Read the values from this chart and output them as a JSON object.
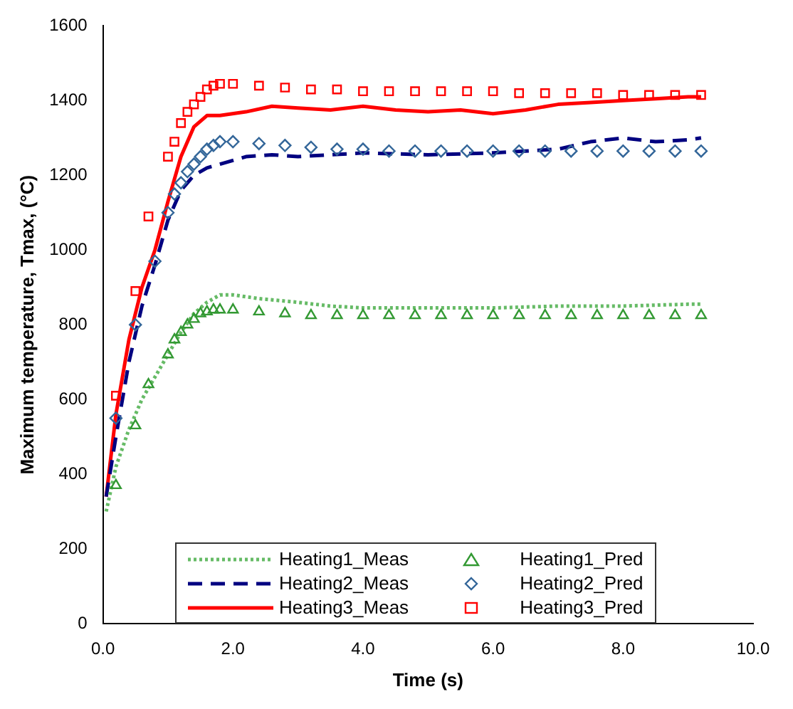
{
  "chart_data": {
    "type": "line",
    "xlabel": "Time (s)",
    "ylabel": "Maximum temperature, Tmax, (°C)",
    "xlim": [
      0,
      10
    ],
    "xticks": [
      {
        "value": 0,
        "label": "0.0"
      },
      {
        "value": 2,
        "label": "2.0"
      },
      {
        "value": 4,
        "label": "4.0"
      },
      {
        "value": 6,
        "label": "6.0"
      },
      {
        "value": 8,
        "label": "8.0"
      },
      {
        "value": 10,
        "label": "10.0"
      }
    ],
    "ylim": [
      0,
      1600
    ],
    "yticks": [
      0,
      200,
      400,
      600,
      800,
      1000,
      1200,
      1400,
      1600
    ],
    "grid": false,
    "legend": "bottom",
    "series": [
      {
        "name": "Heating1_Meas",
        "type": "line",
        "color": "#66bb66",
        "line_style": "dotted",
        "marker": "none",
        "x": [
          0.05,
          0.2,
          0.4,
          0.6,
          0.8,
          1.0,
          1.2,
          1.4,
          1.6,
          1.8,
          2.0,
          2.4,
          3,
          3.5,
          4,
          5,
          6,
          7,
          8,
          9,
          9.2
        ],
        "values": [
          300,
          420,
          520,
          600,
          660,
          720,
          780,
          830,
          860,
          880,
          880,
          870,
          860,
          850,
          845,
          845,
          845,
          850,
          850,
          855,
          855
        ]
      },
      {
        "name": "Heating2_Meas",
        "type": "line",
        "color": "#000080",
        "line_style": "dashed",
        "marker": "none",
        "x": [
          0.05,
          0.2,
          0.4,
          0.6,
          0.8,
          1.0,
          1.2,
          1.4,
          1.6,
          1.8,
          2.2,
          2.6,
          3,
          4,
          5,
          6,
          7,
          7.5,
          8,
          8.5,
          9,
          9.2
        ],
        "values": [
          340,
          500,
          700,
          850,
          960,
          1080,
          1160,
          1200,
          1220,
          1230,
          1250,
          1255,
          1250,
          1260,
          1255,
          1260,
          1270,
          1290,
          1300,
          1290,
          1295,
          1300
        ]
      },
      {
        "name": "Heating3_Meas",
        "type": "line",
        "color": "#ff0000",
        "line_style": "solid",
        "marker": "none",
        "x": [
          0.05,
          0.2,
          0.4,
          0.6,
          0.8,
          1.0,
          1.2,
          1.4,
          1.6,
          1.8,
          2.2,
          2.6,
          3,
          3.5,
          4,
          4.5,
          5,
          5.5,
          6,
          6.5,
          7,
          7.5,
          8,
          8.5,
          9,
          9.2
        ],
        "values": [
          340,
          560,
          760,
          900,
          1000,
          1130,
          1250,
          1330,
          1360,
          1360,
          1370,
          1385,
          1380,
          1375,
          1385,
          1375,
          1370,
          1375,
          1365,
          1375,
          1390,
          1395,
          1400,
          1405,
          1410,
          1410
        ]
      },
      {
        "name": "Heating1_Pred",
        "type": "scatter",
        "color": "#339933",
        "marker": "triangle",
        "x": [
          0.2,
          0.5,
          0.7,
          1.0,
          1.1,
          1.2,
          1.3,
          1.4,
          1.5,
          1.6,
          1.7,
          1.8,
          2.0,
          2.4,
          2.8,
          3.2,
          3.6,
          4.0,
          4.4,
          4.8,
          5.2,
          5.6,
          6.0,
          6.4,
          6.8,
          7.2,
          7.6,
          8.0,
          8.4,
          8.8,
          9.2
        ],
        "values": [
          370,
          530,
          640,
          720,
          760,
          780,
          800,
          815,
          830,
          835,
          840,
          840,
          840,
          835,
          830,
          825,
          825,
          825,
          825,
          825,
          825,
          825,
          825,
          825,
          825,
          825,
          825,
          825,
          825,
          825,
          825
        ]
      },
      {
        "name": "Heating2_Pred",
        "type": "scatter",
        "color": "#336699",
        "marker": "diamond",
        "x": [
          0.2,
          0.5,
          0.8,
          1.0,
          1.1,
          1.2,
          1.3,
          1.4,
          1.5,
          1.6,
          1.7,
          1.8,
          2.0,
          2.4,
          2.8,
          3.2,
          3.6,
          4.0,
          4.4,
          4.8,
          5.2,
          5.6,
          6.0,
          6.4,
          6.8,
          7.2,
          7.6,
          8.0,
          8.4,
          8.8,
          9.2
        ],
        "values": [
          550,
          800,
          970,
          1100,
          1150,
          1180,
          1210,
          1230,
          1250,
          1270,
          1280,
          1290,
          1290,
          1285,
          1280,
          1275,
          1270,
          1270,
          1265,
          1265,
          1265,
          1265,
          1265,
          1265,
          1265,
          1265,
          1265,
          1265,
          1265,
          1265,
          1265
        ]
      },
      {
        "name": "Heating3_Pred",
        "type": "scatter",
        "color": "#ff0000",
        "marker": "square",
        "x": [
          0.2,
          0.5,
          0.7,
          1.0,
          1.1,
          1.2,
          1.3,
          1.4,
          1.5,
          1.6,
          1.7,
          1.8,
          2.0,
          2.4,
          2.8,
          3.2,
          3.6,
          4.0,
          4.4,
          4.8,
          5.2,
          5.6,
          6.0,
          6.4,
          6.8,
          7.2,
          7.6,
          8.0,
          8.4,
          8.8,
          9.2
        ],
        "values": [
          610,
          890,
          1090,
          1250,
          1290,
          1340,
          1370,
          1390,
          1410,
          1430,
          1440,
          1445,
          1445,
          1440,
          1435,
          1430,
          1430,
          1425,
          1425,
          1425,
          1425,
          1425,
          1425,
          1420,
          1420,
          1420,
          1420,
          1415,
          1415,
          1415,
          1415
        ]
      }
    ]
  }
}
